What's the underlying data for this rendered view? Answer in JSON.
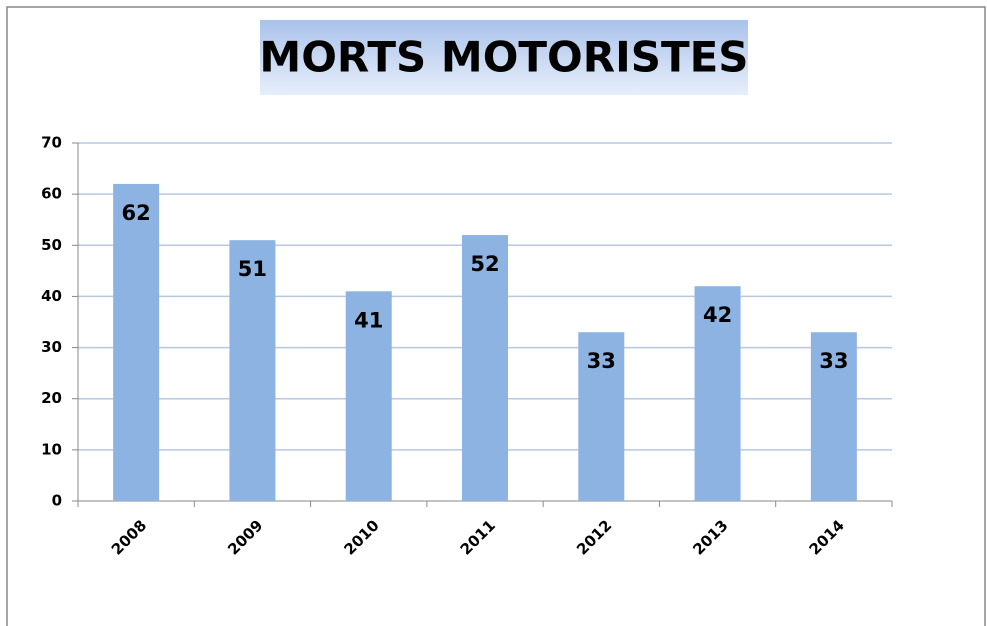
{
  "chart_data": {
    "type": "bar",
    "title": "MORTS MOTORISTES",
    "categories": [
      "2008",
      "2009",
      "2010",
      "2011",
      "2012",
      "2013",
      "2014"
    ],
    "values": [
      62,
      51,
      41,
      52,
      33,
      42,
      33
    ],
    "color": "#8db3e2",
    "ylim": [
      0,
      70
    ],
    "yticks": [
      0,
      10,
      20,
      30,
      40,
      50,
      60,
      70
    ],
    "grid": true
  }
}
